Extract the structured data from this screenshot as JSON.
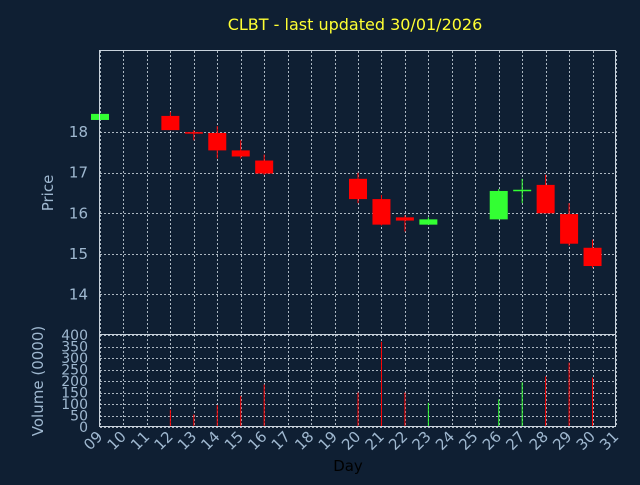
{
  "chart_data": {
    "type": "candlestick",
    "title": "CLBT - last updated 30/01/2026",
    "xlabel": "Day",
    "ylabel": "Price",
    "volume_label": "Volume (0000)",
    "grid": true,
    "colors": {
      "up": "#33ff33",
      "down": "#ff0000",
      "background": "#0f1f33",
      "grid": "#c8d2dc",
      "title": "#ffff33",
      "tick": "#9fb8d0"
    },
    "x_ticks": [
      "09",
      "10",
      "11",
      "12",
      "13",
      "14",
      "15",
      "16",
      "17",
      "18",
      "19",
      "20",
      "21",
      "22",
      "23",
      "24",
      "25",
      "26",
      "27",
      "28",
      "29",
      "30",
      "31"
    ],
    "x_range": [
      9,
      31
    ],
    "price_ticks": [
      "14",
      "15",
      "16",
      "17",
      "18"
    ],
    "price_range": [
      13.0,
      20.0
    ],
    "volume_ticks": [
      "0",
      "50",
      "100",
      "150",
      "200",
      "250",
      "300",
      "350",
      "400"
    ],
    "volume_range": [
      0,
      400
    ],
    "candles": [
      {
        "day": 9,
        "open": 18.3,
        "high": 18.45,
        "low": 18.3,
        "close": 18.45,
        "volume": 0
      },
      {
        "day": 12,
        "open": 18.4,
        "high": 18.5,
        "low": 18.05,
        "close": 18.05,
        "volume": 75
      },
      {
        "day": 13,
        "open": 18.0,
        "high": 18.05,
        "low": 17.8,
        "close": 17.98,
        "volume": 55
      },
      {
        "day": 14,
        "open": 17.98,
        "high": 18.15,
        "low": 17.35,
        "close": 17.55,
        "volume": 95
      },
      {
        "day": 15,
        "open": 17.55,
        "high": 17.8,
        "low": 17.35,
        "close": 17.4,
        "volume": 135
      },
      {
        "day": 16,
        "open": 17.3,
        "high": 17.45,
        "low": 16.95,
        "close": 16.98,
        "volume": 185
      },
      {
        "day": 20,
        "open": 16.85,
        "high": 17.0,
        "low": 16.25,
        "close": 16.35,
        "volume": 150
      },
      {
        "day": 21,
        "open": 16.35,
        "high": 16.45,
        "low": 15.7,
        "close": 15.72,
        "volume": 370
      },
      {
        "day": 22,
        "open": 15.9,
        "high": 15.95,
        "low": 15.55,
        "close": 15.82,
        "volume": 150
      },
      {
        "day": 23,
        "open": 15.72,
        "high": 15.9,
        "low": 15.72,
        "close": 15.85,
        "volume": 105
      },
      {
        "day": 26,
        "open": 15.85,
        "high": 16.6,
        "low": 15.85,
        "close": 16.55,
        "volume": 120
      },
      {
        "day": 27,
        "open": 16.58,
        "high": 16.85,
        "low": 16.25,
        "close": 16.58,
        "volume": 195
      },
      {
        "day": 28,
        "open": 16.7,
        "high": 16.95,
        "low": 16.0,
        "close": 16.0,
        "volume": 220
      },
      {
        "day": 29,
        "open": 15.98,
        "high": 16.25,
        "low": 15.2,
        "close": 15.25,
        "volume": 280
      },
      {
        "day": 30,
        "open": 15.15,
        "high": 15.35,
        "low": 14.65,
        "close": 14.7,
        "volume": 215
      }
    ]
  }
}
